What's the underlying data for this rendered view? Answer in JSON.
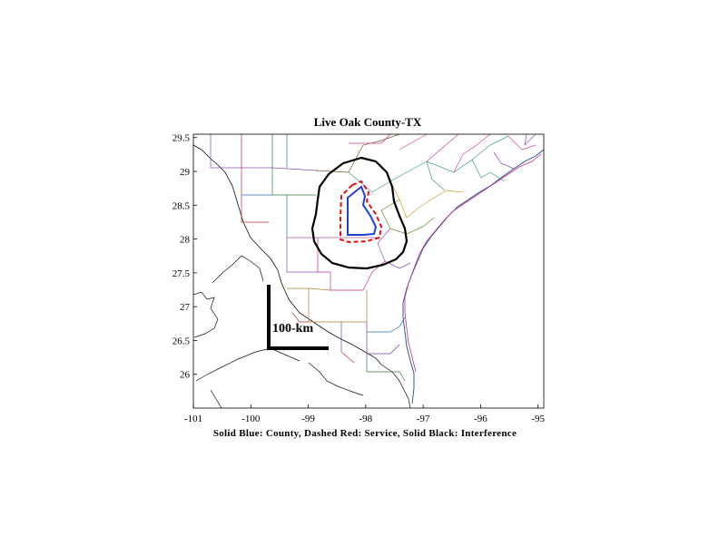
{
  "title": "Live Oak County-TX",
  "caption": "Solid Blue: County, Dashed Red: Service, Solid Black: Interference",
  "scale_bar": {
    "label": "100-km"
  },
  "axes": {
    "x": {
      "range": [
        -101,
        -94.9
      ],
      "ticks": [
        -101,
        -100,
        -99,
        -98,
        -97,
        -96,
        -95
      ],
      "tick_labels": [
        "-101",
        "-100",
        "-99",
        "-98",
        "-97",
        "-96",
        "-95"
      ]
    },
    "y": {
      "range": [
        25.5,
        29.55
      ],
      "ticks": [
        26,
        26.5,
        27,
        27.5,
        28,
        28.5,
        29,
        29.5
      ],
      "tick_labels": [
        "26",
        "26.5",
        "27",
        "27.5",
        "28",
        "28.5",
        "29",
        "29.5"
      ]
    }
  },
  "legend_colors": {
    "county": "#1f3fd6",
    "service": "#e01010",
    "interference": "#000000"
  }
}
